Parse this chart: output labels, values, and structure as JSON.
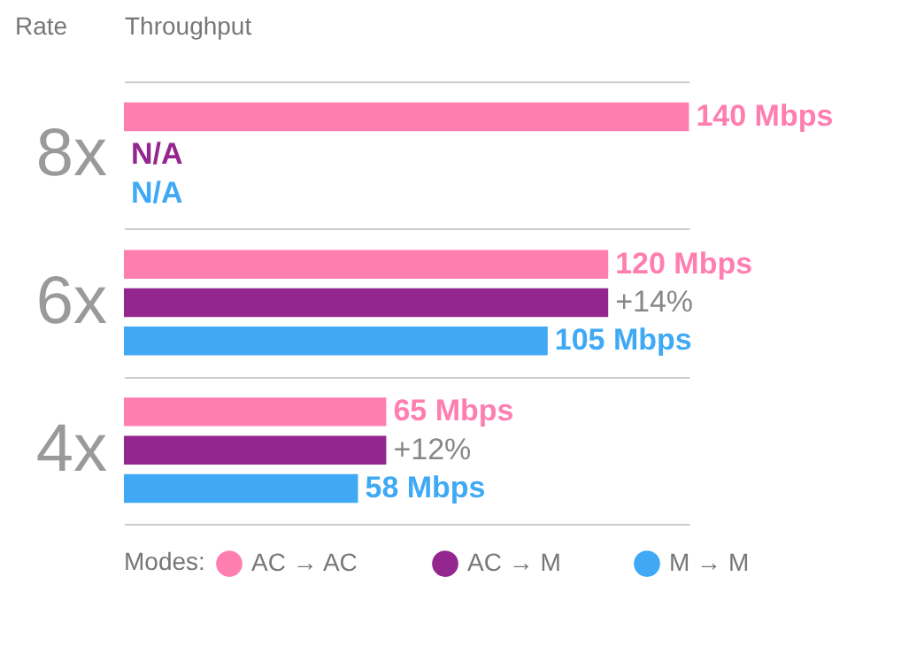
{
  "chart_data": {
    "type": "bar",
    "orientation": "horizontal",
    "xlabel": "Throughput",
    "ylabel": "Rate",
    "legend_title": "Modes:",
    "legend": "bottom",
    "grid": "y",
    "tick_labels": "y",
    "categories": [
      "8x",
      "6x",
      "4x"
    ],
    "series": [
      {
        "name": "AC → AC",
        "color": "#ff7eb0",
        "values": [
          140,
          120,
          65
        ],
        "value_labels": [
          "140 Mbps",
          "120 Mbps",
          "65 Mbps"
        ]
      },
      {
        "name": "AC → M",
        "color": "#93278f",
        "values": [
          null,
          120,
          65
        ],
        "value_labels": [
          "N/A",
          null,
          null
        ]
      },
      {
        "name": "M → M",
        "color": "#3fa9f5",
        "values": [
          null,
          105,
          58
        ],
        "value_labels": [
          "N/A",
          "105 Mbps",
          "58 Mbps"
        ]
      }
    ],
    "annotations": [
      {
        "text": "+14%",
        "x": 120,
        "y": "6x"
      },
      {
        "text": "+12%",
        "x": 65,
        "y": "4x"
      }
    ]
  }
}
